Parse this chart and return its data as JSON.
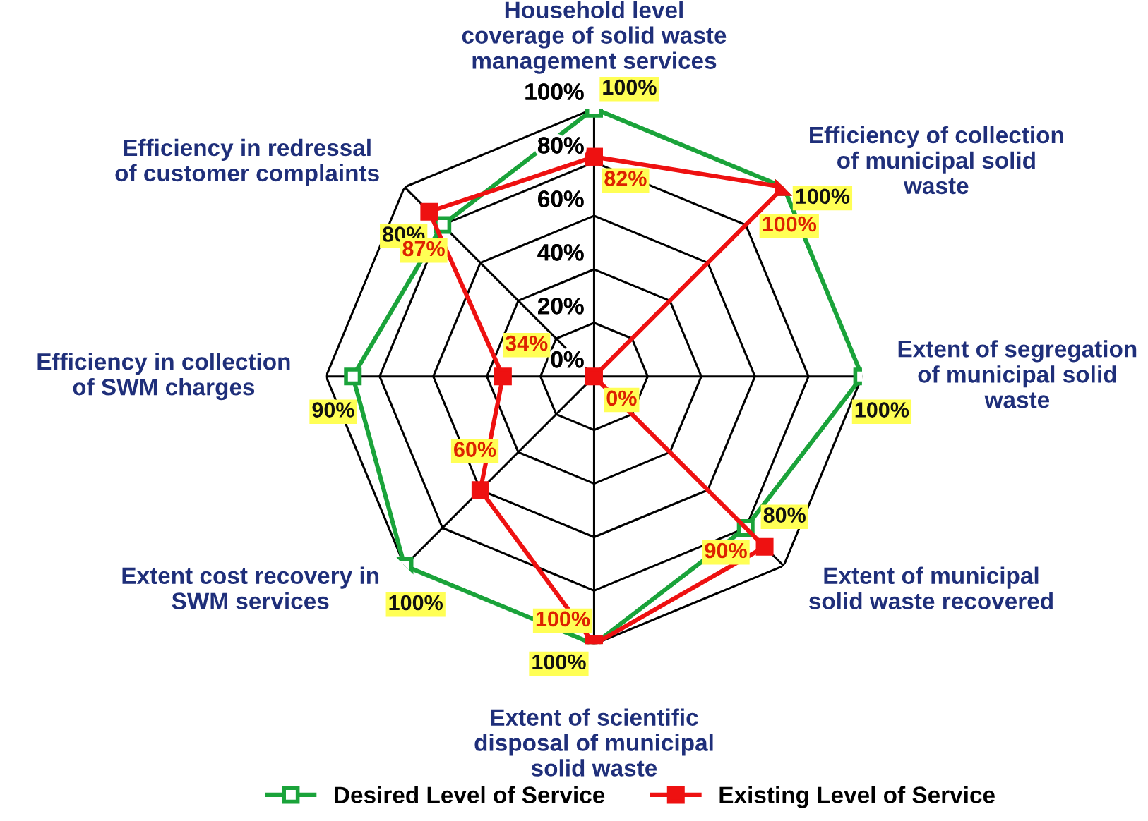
{
  "chart_data": {
    "type": "radar",
    "categories": [
      "Household level\ncoverage of solid waste\nmanagement services",
      "Efficiency of collection\nof municipal solid\nwaste",
      "Extent of segregation\nof municipal solid\nwaste",
      "Extent of municipal\nsolid waste recovered",
      "Extent of scientific\ndisposal of municipal\nsolid waste",
      "Extent cost recovery in\nSWM services",
      "Efficiency in collection\nof SWM charges",
      "Efficiency in redressal\nof customer complaints"
    ],
    "series": [
      {
        "name": "Desired Level of Service",
        "color": "#1aa33a",
        "values": [
          100,
          100,
          100,
          80,
          100,
          100,
          90,
          80
        ],
        "value_labels": [
          "100%",
          "100%",
          "100%",
          "80%",
          "100%",
          "100%",
          "90%",
          "80%"
        ]
      },
      {
        "name": "Existing Level of Service",
        "color": "#ee1111",
        "values": [
          82,
          100,
          0,
          90,
          100,
          60,
          34,
          87
        ],
        "value_labels": [
          "82%",
          "100%",
          "0%",
          "90%",
          "100%",
          "60%",
          "34%",
          "87%"
        ]
      }
    ],
    "ylim": [
      0,
      100
    ],
    "yticks": [
      {
        "value": 0,
        "label": "0%"
      },
      {
        "value": 20,
        "label": "20%"
      },
      {
        "value": 40,
        "label": "40%"
      },
      {
        "value": 60,
        "label": "60%"
      },
      {
        "value": 80,
        "label": "80%"
      },
      {
        "value": 100,
        "label": "100%"
      }
    ],
    "grid": true,
    "legend": "bottom",
    "marker": "square",
    "line_style": "solid"
  }
}
